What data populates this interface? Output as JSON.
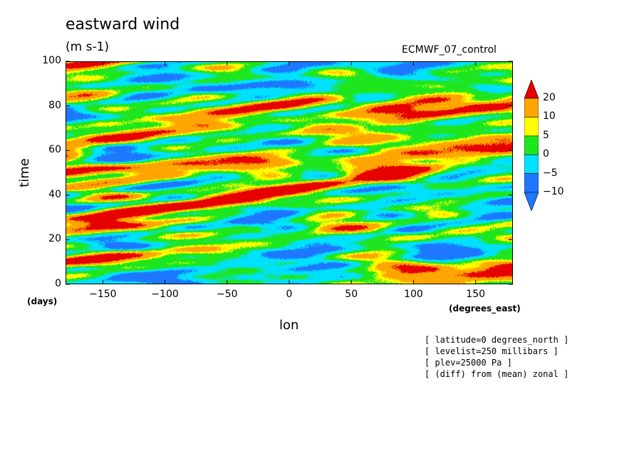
{
  "chart_data": {
    "type": "heatmap",
    "title": "eastward wind",
    "units": "(m s-1)",
    "dataset": "ECMWF_07_control",
    "xlabel": "lon",
    "ylabel": "time",
    "x_unit": "(degrees_east)",
    "y_unit": "(days)",
    "xlim": [
      -180,
      180
    ],
    "ylim": [
      0,
      100
    ],
    "x_ticks": [
      "-150",
      "-100",
      "-50",
      "0",
      "50",
      "100",
      "150"
    ],
    "y_ticks": [
      "0",
      "20",
      "40",
      "60",
      "80",
      "100"
    ],
    "x_tick_values": [
      -150,
      -100,
      -50,
      0,
      50,
      100,
      150
    ],
    "y_tick_values": [
      0,
      20,
      40,
      60,
      80,
      100
    ],
    "colorbar": {
      "levels": [
        "-10",
        "-5",
        "0",
        "5",
        "10",
        "20"
      ],
      "level_values": [
        -10,
        -5,
        0,
        5,
        10,
        20
      ],
      "colors": [
        "#1e78ff",
        "#1e78ff",
        "#00e1ff",
        "#1ee61e",
        "#ffff00",
        "#ffa500",
        "#e60000"
      ]
    },
    "notes": [
      "[ latitude=0 degrees_north ]",
      "[ levelist=250 millibars ]",
      "[ plev=25000 Pa ]",
      "[ (diff) from (mean) zonal ]"
    ]
  }
}
